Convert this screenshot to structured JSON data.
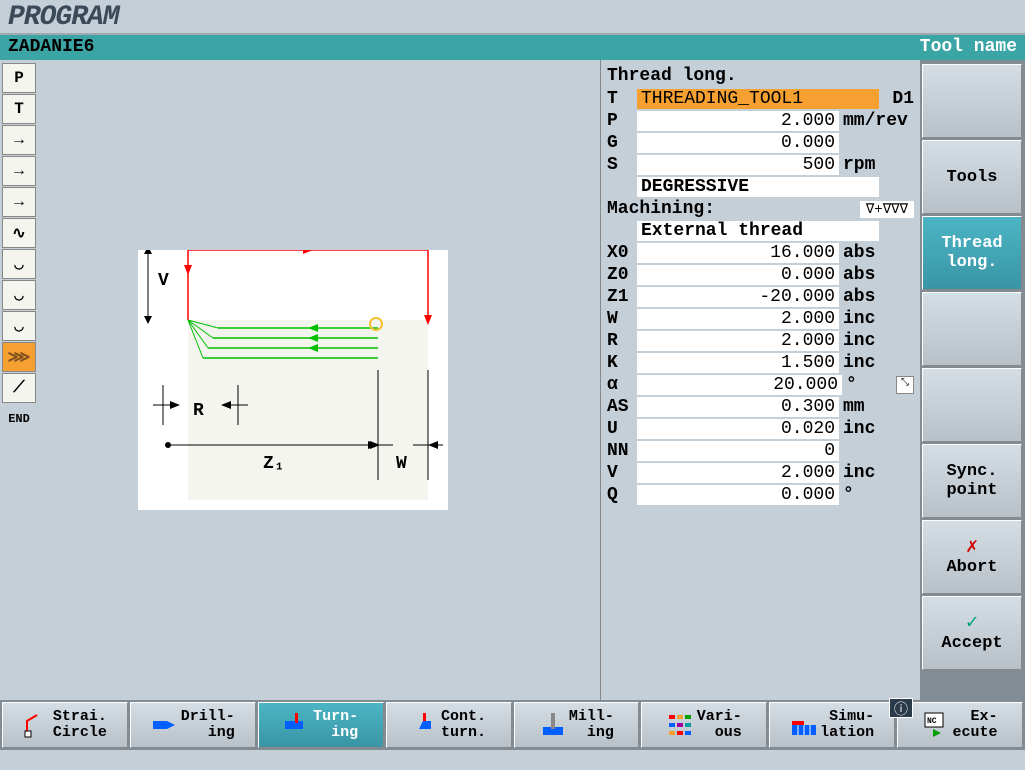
{
  "header": {
    "title": "PROGRAM"
  },
  "subheader": {
    "left": "ZADANIE6",
    "right": "Tool name"
  },
  "left_icons": [
    {
      "label": "P",
      "type": "text"
    },
    {
      "label": "T",
      "type": "text"
    },
    {
      "label": "→",
      "type": "arrow"
    },
    {
      "label": "→",
      "type": "arrow"
    },
    {
      "label": "→",
      "type": "arrow"
    },
    {
      "label": "∿",
      "type": "wave1"
    },
    {
      "label": "◡",
      "type": "wave2"
    },
    {
      "label": "◡",
      "type": "wave3"
    },
    {
      "label": "◡",
      "type": "wave4"
    },
    {
      "label": "⋙",
      "type": "thread",
      "selected": true
    },
    {
      "label": "⟋",
      "type": "hatch"
    },
    {
      "label": "END",
      "type": "end"
    }
  ],
  "params": {
    "title": "Thread long.",
    "tool_label": "T",
    "tool_value": "THREADING_TOOL1",
    "tool_d": "D1",
    "rows": [
      {
        "label": "P",
        "value": "2.000",
        "unit": "mm/rev"
      },
      {
        "label": "G",
        "value": "0.000",
        "unit": ""
      },
      {
        "label": "S",
        "value": "500",
        "unit": "rpm"
      }
    ],
    "mode": "DEGRESSIVE",
    "machining_label": "Machining:",
    "machining_symbol": "∇+∇∇∇",
    "thread_type": "External thread",
    "geom": [
      {
        "label": "X0",
        "value": "16.000",
        "unit": "abs"
      },
      {
        "label": "Z0",
        "value": "0.000",
        "unit": "abs"
      },
      {
        "label": "Z1",
        "value": "-20.000",
        "unit": "abs"
      },
      {
        "label": "W",
        "value": "2.000",
        "unit": "inc"
      },
      {
        "label": "R",
        "value": "2.000",
        "unit": "inc"
      },
      {
        "label": "K",
        "value": "1.500",
        "unit": "inc"
      },
      {
        "label": "α",
        "value": "20.000",
        "unit": "°",
        "toggle": true
      },
      {
        "label": "AS",
        "value": "0.300",
        "unit": "mm"
      },
      {
        "label": "U",
        "value": "0.020",
        "unit": "inc"
      },
      {
        "label": "NN",
        "value": "0",
        "unit": ""
      },
      {
        "label": "V",
        "value": "2.000",
        "unit": "inc"
      },
      {
        "label": "Q",
        "value": "0.000",
        "unit": "°"
      }
    ]
  },
  "right_buttons": [
    {
      "label": "",
      "name": "blank1"
    },
    {
      "label": "Tools",
      "name": "tools"
    },
    {
      "label": "Thread\nlong.",
      "name": "thread-long",
      "selected": true
    },
    {
      "label": "",
      "name": "blank2"
    },
    {
      "label": "",
      "name": "blank3"
    },
    {
      "label": "Sync.\npoint",
      "name": "sync-point"
    },
    {
      "label": "Abort",
      "name": "abort",
      "icon": "✗",
      "icon_color": "#d00000"
    },
    {
      "label": "Accept",
      "name": "accept",
      "icon": "✓",
      "icon_color": "#00a080"
    }
  ],
  "bottom_buttons": [
    {
      "label": "Strai.\nCircle",
      "name": "straight-circle",
      "icon_color": "#ff0000"
    },
    {
      "label": "Drill-\ning",
      "name": "drilling",
      "icon_color": "#0060ff"
    },
    {
      "label": "Turn-\ning",
      "name": "turning",
      "selected": true,
      "icon_color": "#ff0000"
    },
    {
      "label": "Cont.\nturn.",
      "name": "contour-turning",
      "icon_color": "#0060ff"
    },
    {
      "label": "Mill-\ning",
      "name": "milling",
      "icon_color": "#0060ff"
    },
    {
      "label": "Vari-\nous",
      "name": "various",
      "icon_color": "#multi"
    },
    {
      "label": "Simu-\nlation",
      "name": "simulation",
      "icon_color": "#ff0000"
    },
    {
      "label": "Ex-\necute",
      "name": "execute",
      "icon_color": "#00a000"
    }
  ],
  "diagram": {
    "bg": "#ffffff",
    "red": "#ff0000",
    "green": "#00c000",
    "yellow": "#f5c030",
    "black": "#000000",
    "labels": {
      "V": "V",
      "R": "R",
      "Z1": "Z₁",
      "W": "W"
    }
  },
  "info_icon": "i"
}
